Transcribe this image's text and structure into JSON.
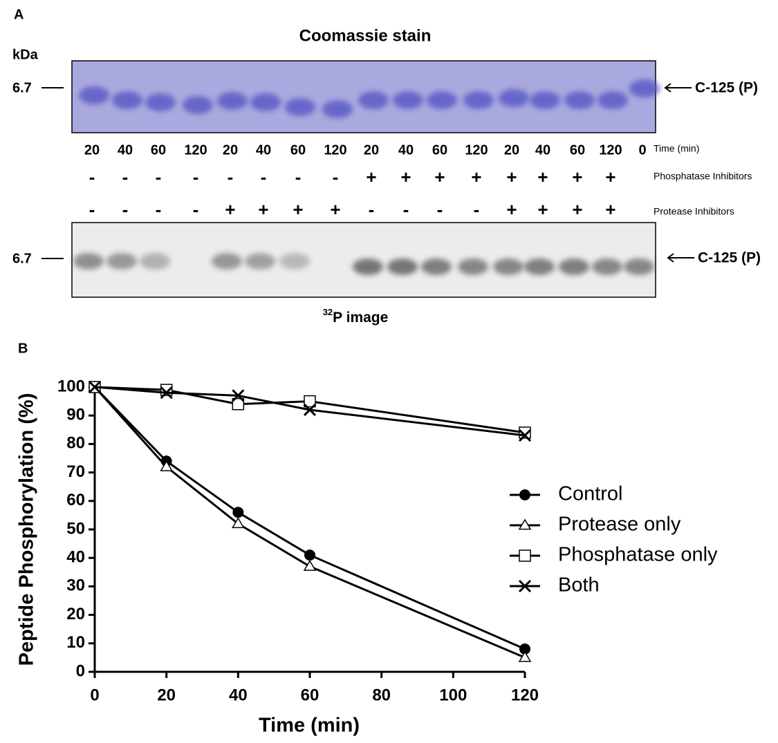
{
  "panel_a": {
    "label": "A",
    "title": "Coomassie stain",
    "unit": "kDa",
    "coomassie_gel": {
      "marker": "6.7",
      "band_label": "C-125 (P)"
    },
    "lanes": [
      "20",
      "40",
      "60",
      "120",
      "20",
      "40",
      "60",
      "120",
      "20",
      "40",
      "60",
      "120",
      "20",
      "40",
      "60",
      "120",
      "0"
    ],
    "lanes_label": "Time (min)",
    "phosphatase_inhibitors": [
      "-",
      "-",
      "-",
      "-",
      "-",
      "-",
      "-",
      "-",
      "+",
      "+",
      "+",
      "+",
      "+",
      "+",
      "+",
      "+"
    ],
    "phosphatase_label": "Phosphatase Inhibitors",
    "protease_inhibitors": [
      "-",
      "-",
      "-",
      "-",
      "+",
      "+",
      "+",
      "+",
      "-",
      "-",
      "-",
      "-",
      "+",
      "+",
      "+",
      "+"
    ],
    "protease_label": "Protease Inhibitors",
    "p32_gel": {
      "marker": "6.7",
      "band_label": "C-125 (P)",
      "caption_sup": "32",
      "caption": "P image"
    }
  },
  "chart_data": {
    "type": "line",
    "label": "B",
    "x_label": "Time (min)",
    "y_label": "Peptide Phosphorylation (%)",
    "x": [
      0,
      20,
      40,
      60,
      120
    ],
    "series": [
      {
        "name": "Control",
        "color": "#000000",
        "marker": "circle",
        "values": [
          100,
          74,
          56,
          41,
          8
        ]
      },
      {
        "name": "Protease only",
        "color": "#000000",
        "marker": "triangle",
        "values": [
          100,
          72,
          52,
          37,
          5
        ]
      },
      {
        "name": "Phosphatase only",
        "color": "#000000",
        "marker": "square",
        "values": [
          100,
          99,
          94,
          95,
          84
        ]
      },
      {
        "name": "Both",
        "color": "#000000",
        "marker": "cross",
        "values": [
          100,
          98,
          97,
          92,
          83
        ]
      }
    ],
    "xlim": [
      0,
      120
    ],
    "ylim": [
      0,
      100
    ],
    "xticks": [
      0,
      20,
      40,
      60,
      80,
      100,
      120
    ],
    "yticks": [
      0,
      10,
      20,
      30,
      40,
      50,
      60,
      70,
      80,
      90,
      100
    ],
    "legend": "right"
  }
}
